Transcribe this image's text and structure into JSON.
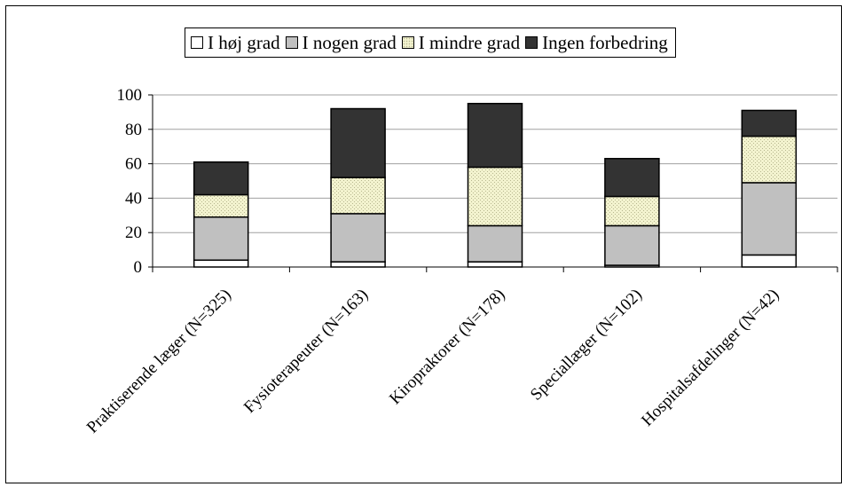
{
  "chart_data": {
    "type": "bar",
    "stacked": true,
    "categories": [
      "Praktiserende læger (N=325)",
      "Fysioterapeuter (N=163)",
      "Kiropraktorer (N=178)",
      "Speciallæger (N=102)",
      "Hospitalsafdelinger (N=42)"
    ],
    "series": [
      {
        "name": "I høj grad",
        "color": "#ffffff",
        "values": [
          4,
          3,
          3,
          1,
          7
        ]
      },
      {
        "name": "I nogen grad",
        "color": "#c0c0c0",
        "values": [
          25,
          28,
          21,
          23,
          42
        ]
      },
      {
        "name": "I mindre grad",
        "color": "#f0f0c8",
        "values": [
          13,
          21,
          34,
          17,
          27
        ]
      },
      {
        "name": "Ingen forbedring",
        "color": "#333333",
        "values": [
          19,
          40,
          37,
          22,
          15
        ]
      }
    ],
    "ylim": [
      0,
      100
    ],
    "yticks": [
      "0",
      "20",
      "40",
      "60",
      "80",
      "100"
    ],
    "grid": true,
    "legend_position": "top"
  }
}
